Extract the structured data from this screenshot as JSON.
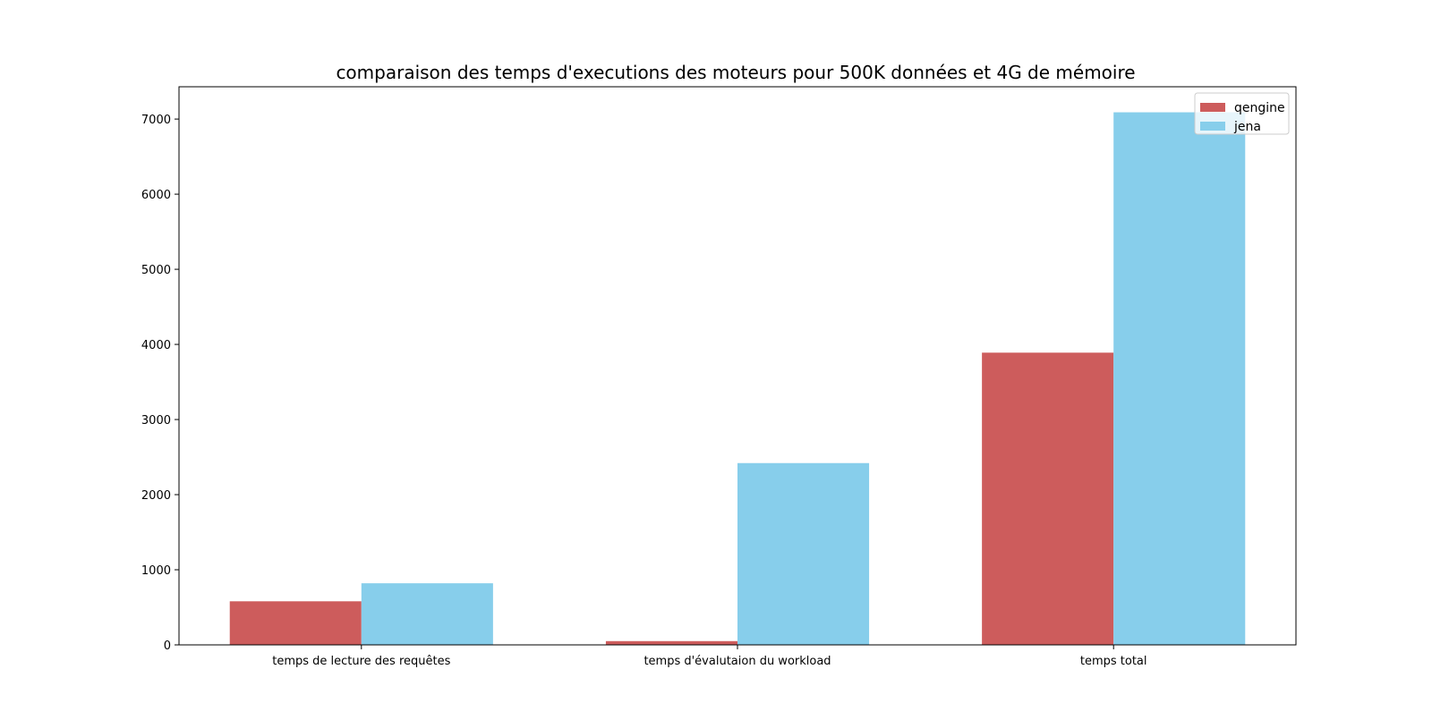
{
  "chart_data": {
    "type": "bar",
    "title": "comparaison des temps d'executions des moteurs pour 500K données et 4G de mémoire",
    "xlabel": "",
    "ylabel": "",
    "categories": [
      "temps de lecture des requêtes",
      "temps d'évalutaion du workload",
      "temps total"
    ],
    "series": [
      {
        "name": "qengine",
        "color": "#cd5c5c",
        "values": [
          580,
          50,
          3890
        ]
      },
      {
        "name": "jena",
        "color": "#87ceeb",
        "values": [
          820,
          2420,
          7090
        ]
      }
    ],
    "ylim": [
      0,
      7430
    ],
    "yticks": [
      0,
      1000,
      2000,
      3000,
      4000,
      5000,
      6000,
      7000
    ],
    "grid": false,
    "legend_position": "top-right"
  }
}
